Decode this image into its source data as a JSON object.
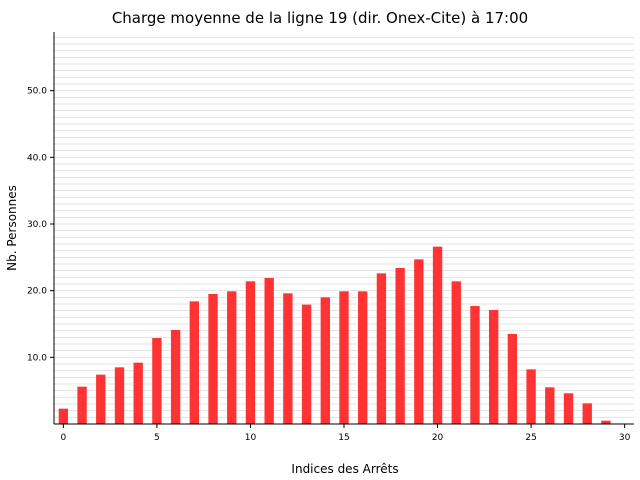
{
  "chart_data": {
    "type": "bar",
    "title": "Charge moyenne de la ligne 19 (dir. Onex-Cite) à 17:00",
    "xlabel": "Indices des Arrêts",
    "ylabel": "Nb. Personnes",
    "x": [
      0,
      1,
      2,
      3,
      4,
      5,
      6,
      7,
      8,
      9,
      10,
      11,
      12,
      13,
      14,
      15,
      16,
      17,
      18,
      19,
      20,
      21,
      22,
      23,
      24,
      25,
      26,
      27,
      28,
      29
    ],
    "values": [
      2.3,
      5.6,
      7.4,
      8.5,
      9.2,
      12.9,
      14.1,
      18.4,
      19.5,
      19.9,
      21.4,
      21.9,
      19.6,
      17.9,
      19.0,
      19.9,
      19.9,
      22.6,
      23.4,
      24.7,
      26.6,
      21.4,
      17.7,
      17.1,
      13.5,
      8.2,
      5.5,
      4.6,
      3.1,
      0.5
    ],
    "xlim": [
      -0.5,
      30.5
    ],
    "ylim": [
      0,
      58.8
    ],
    "xticks": [
      "0",
      "5",
      "10",
      "15",
      "20",
      "25",
      "30"
    ],
    "yticks": [
      "10.0",
      "20.0",
      "30.0",
      "40.0",
      "50.0"
    ],
    "bar_color": "#ff3333",
    "grid": true,
    "grid_minor_step": 1
  }
}
